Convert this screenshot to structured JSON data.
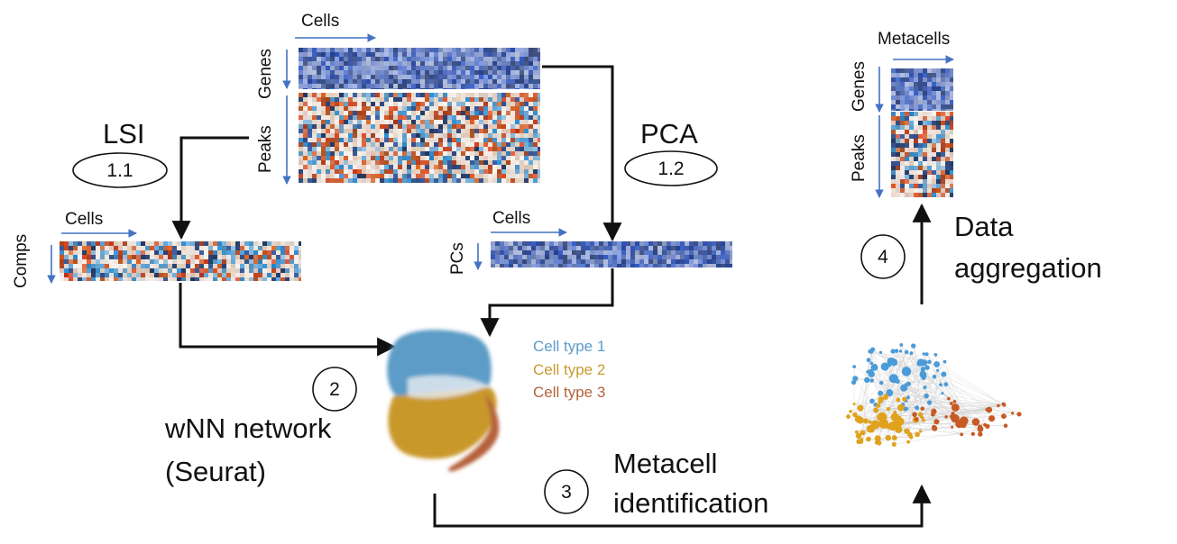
{
  "labels": {
    "cells_top": "Cells",
    "genes_top": "Genes",
    "peaks_top": "Peaks",
    "lsi": "LSI",
    "step_1_1": "1.1",
    "pca": "PCA",
    "step_1_2": "1.2",
    "cells_lsi": "Cells",
    "comps": "Comps",
    "cells_pca": "Cells",
    "pcs": "PCs",
    "step_2": "2",
    "wnn_line1": "wNN network",
    "wnn_line2": "(Seurat)",
    "step_3": "3",
    "metacell_line1": "Metacell",
    "metacell_line2": "identification",
    "metacells": "Metacells",
    "genes_meta": "Genes",
    "peaks_meta": "Peaks",
    "step_4": "4",
    "data_line1": "Data",
    "data_line2": "aggregation"
  },
  "legend": [
    {
      "label": "Cell type 1",
      "color": "#5b9bc7"
    },
    {
      "label": "Cell type 2",
      "color": "#c99a2e"
    },
    {
      "label": "Cell type 3",
      "color": "#b3623a"
    }
  ],
  "colors": {
    "arrow": "#111111",
    "axis_arrow": "#4472c4",
    "heat_blue": "#4a6bc0",
    "heat_red": "#c0482e",
    "cluster_blue": "#4a9bd8",
    "cluster_orange": "#e0a21c",
    "cluster_rust": "#c85a26"
  }
}
